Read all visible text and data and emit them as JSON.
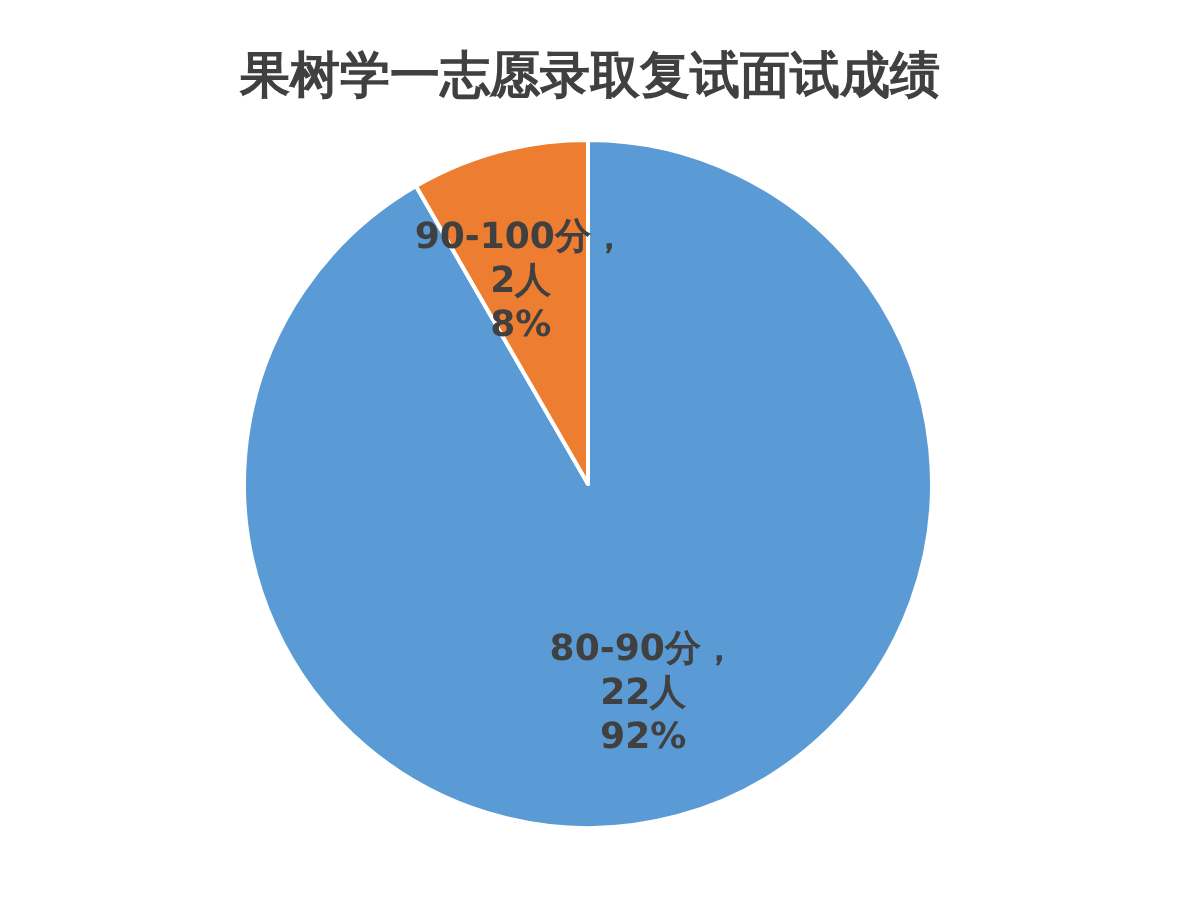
{
  "chart_data": {
    "type": "pie",
    "title": "果树学一志愿录取复试面试成绩",
    "categories": [
      "80-90分",
      "90-100分"
    ],
    "values": [
      22,
      2
    ],
    "colors": [
      "#5b9bd5",
      "#ed7d31"
    ],
    "value_labels": [
      "， 22人 92%",
      "， 2人 8%"
    ]
  }
}
